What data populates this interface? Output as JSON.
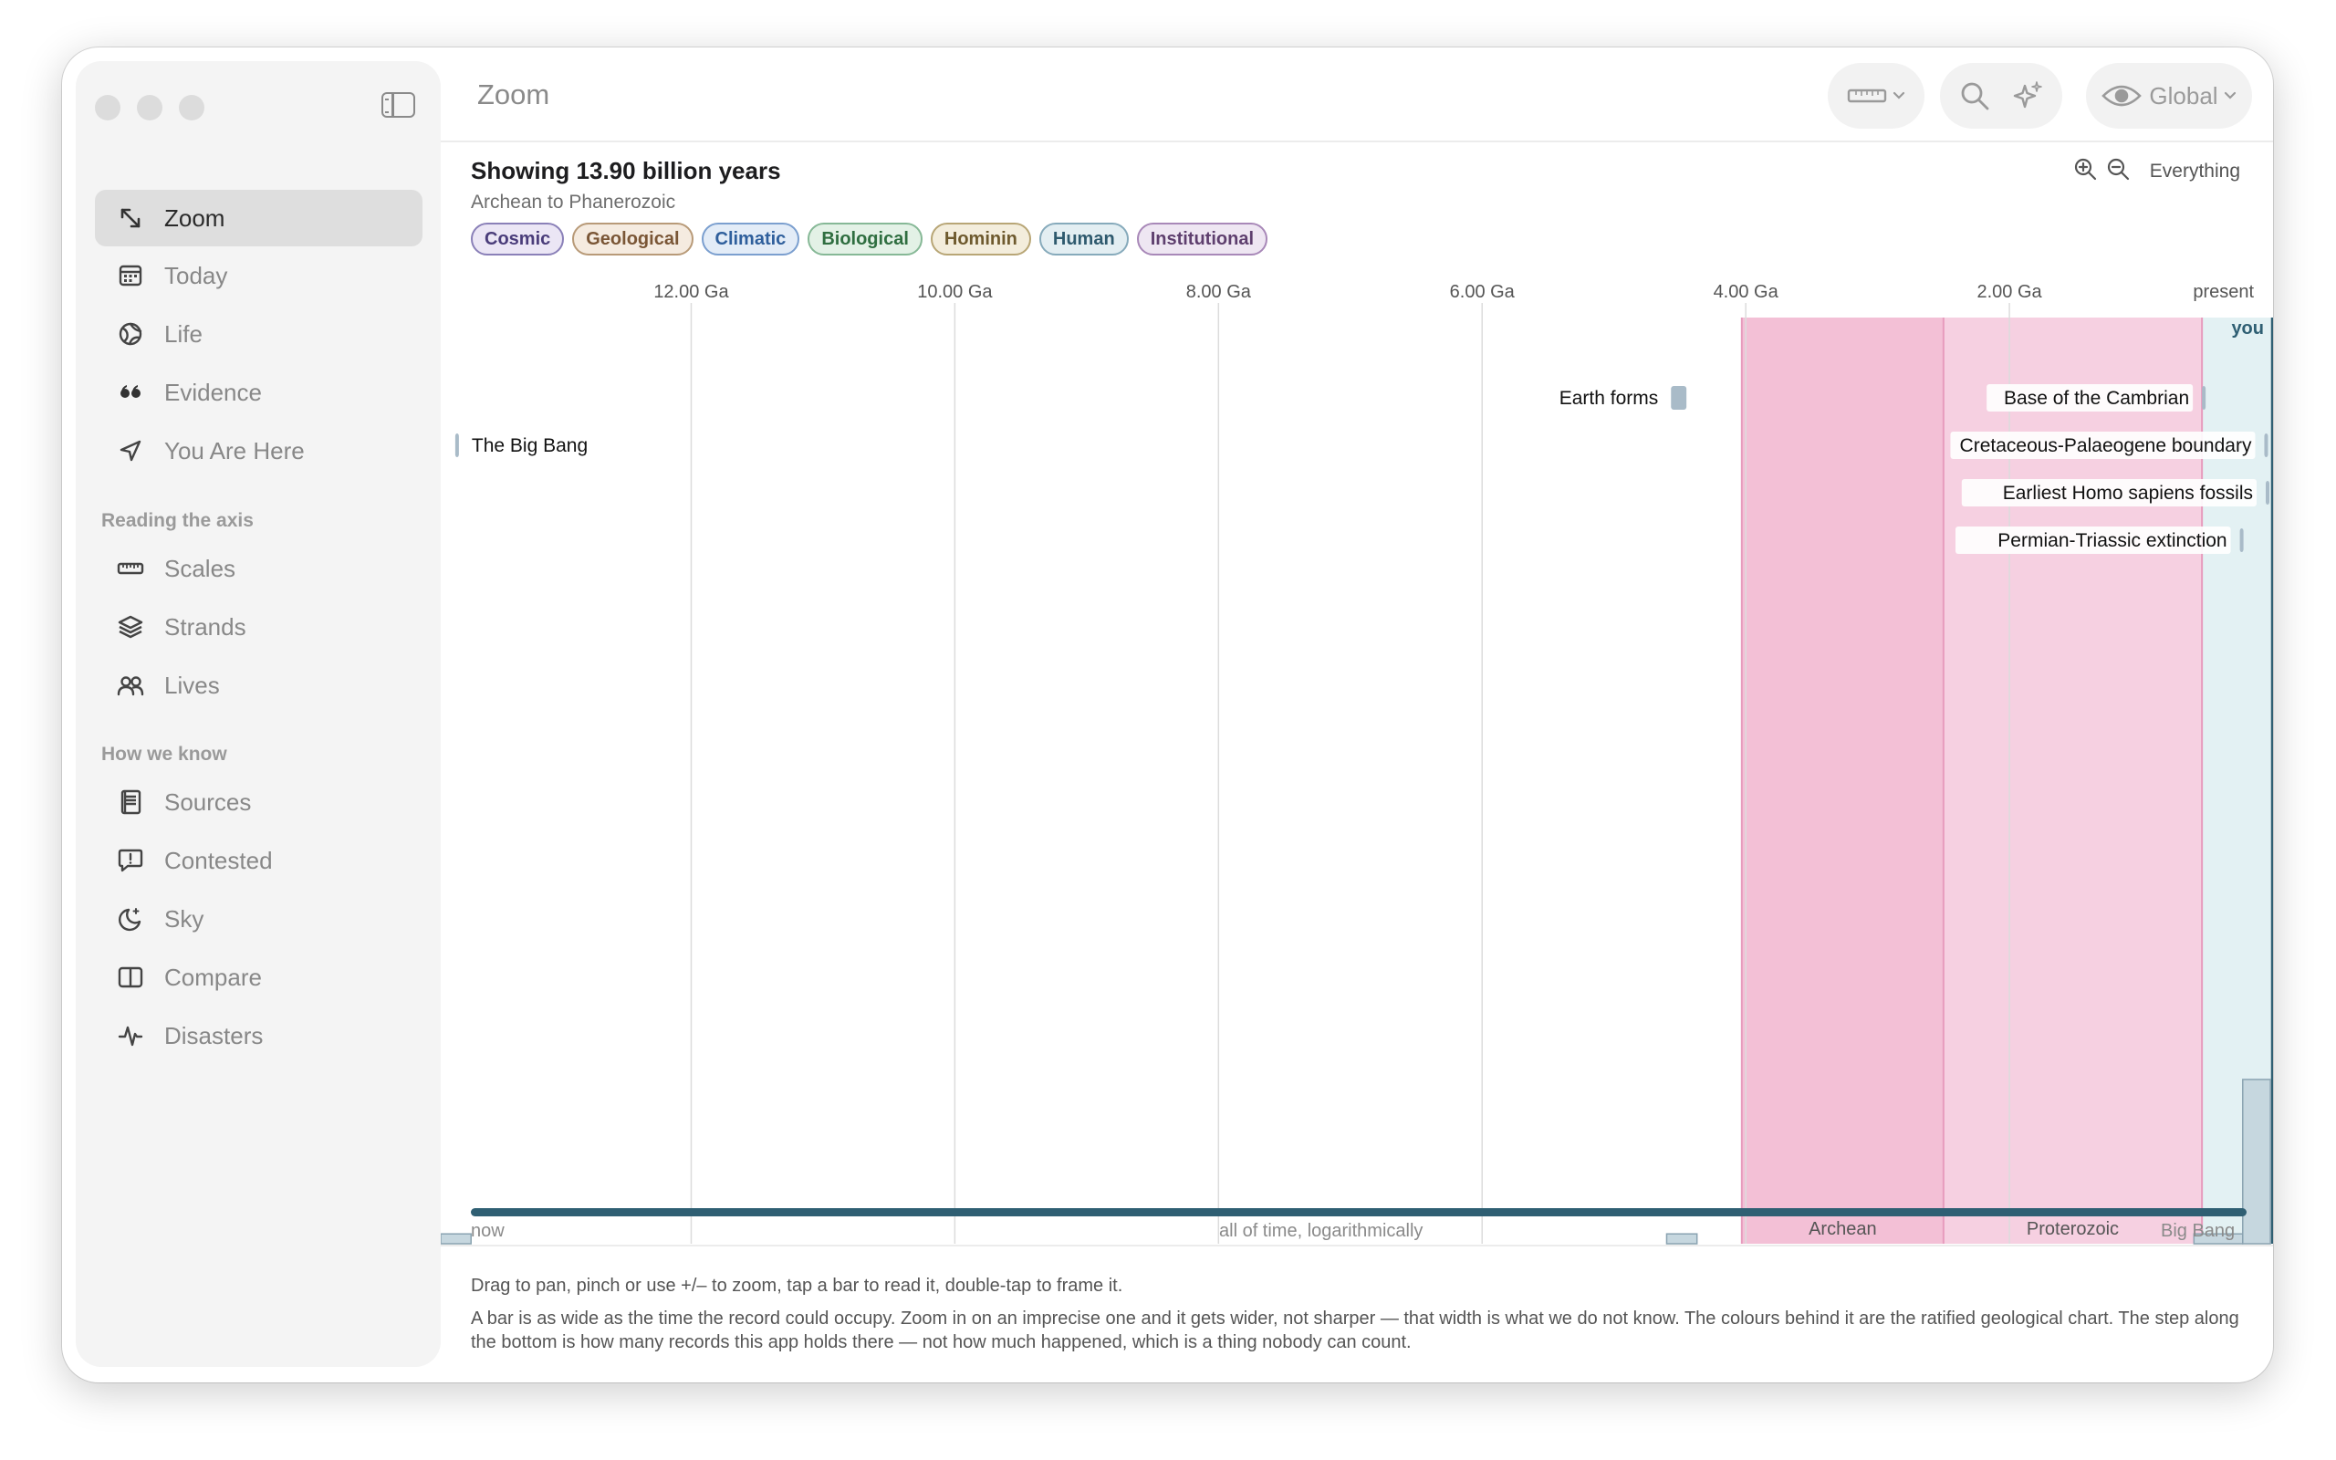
{
  "window": {
    "title": "Zoom"
  },
  "sidebar": {
    "items": [
      {
        "label": "Zoom",
        "icon": "arrows-diagonal-icon",
        "selected": true
      },
      {
        "label": "Today",
        "icon": "calendar-icon"
      },
      {
        "label": "Life",
        "icon": "globe-leaf-icon"
      },
      {
        "label": "Evidence",
        "icon": "quote-icon"
      },
      {
        "label": "You Are Here",
        "icon": "location-arrow-icon"
      }
    ],
    "sections": [
      {
        "heading": "Reading the axis",
        "items": [
          {
            "label": "Scales",
            "icon": "ruler-icon"
          },
          {
            "label": "Strands",
            "icon": "layers-icon"
          },
          {
            "label": "Lives",
            "icon": "people-icon"
          }
        ]
      },
      {
        "heading": "How we know",
        "items": [
          {
            "label": "Sources",
            "icon": "book-icon"
          },
          {
            "label": "Contested",
            "icon": "speech-exclamation-icon"
          },
          {
            "label": "Sky",
            "icon": "moon-stars-icon"
          },
          {
            "label": "Compare",
            "icon": "split-panel-icon"
          },
          {
            "label": "Disasters",
            "icon": "waveform-icon"
          }
        ]
      }
    ]
  },
  "toolbar": {
    "scale_menu_icon": "ruler-icon",
    "search_icon": "search-icon",
    "sparkle_icon": "sparkle-icon",
    "view_label": "Global",
    "view_icon": "eye-icon"
  },
  "header": {
    "showing": "Showing 13.90 billion years",
    "range": "Archean to Phanerozoic",
    "zoom_in_icon": "zoom-in-icon",
    "zoom_out_icon": "zoom-out-icon",
    "zoom_preset": "Everything"
  },
  "strands": [
    {
      "label": "Cosmic",
      "color": "#4a3d7a",
      "bg": "#ebe6f5",
      "border": "#8a80b8"
    },
    {
      "label": "Geological",
      "color": "#7a5636",
      "bg": "#f5ebe0",
      "border": "#b89a78"
    },
    {
      "label": "Climatic",
      "color": "#2f5f9c",
      "bg": "#e3ecf7",
      "border": "#7b9fcf"
    },
    {
      "label": "Biological",
      "color": "#2f6e40",
      "bg": "#e3f1e6",
      "border": "#86b896"
    },
    {
      "label": "Hominin",
      "color": "#6e5a2e",
      "bg": "#f3eddc",
      "border": "#b8a676"
    },
    {
      "label": "Human",
      "color": "#2f5a6e",
      "bg": "#e3eef2",
      "border": "#86aabb"
    },
    {
      "label": "Institutional",
      "color": "#5e3f6e",
      "bg": "#eee6f2",
      "border": "#a888b8"
    }
  ],
  "chart_data": {
    "type": "timeline",
    "x_unit": "Ga before present",
    "xlim": [
      13.9,
      0
    ],
    "ticks": [
      {
        "label": "12.00 Ga",
        "value": 12
      },
      {
        "label": "10.00 Ga",
        "value": 10
      },
      {
        "label": "8.00 Ga",
        "value": 8
      },
      {
        "label": "6.00 Ga",
        "value": 6
      },
      {
        "label": "4.00 Ga",
        "value": 4
      },
      {
        "label": "2.00 Ga",
        "value": 2
      },
      {
        "label": "present",
        "value": 0
      }
    ],
    "you_label": "you",
    "eons": [
      {
        "name": "Archean",
        "start": 4.03,
        "end": 2.5,
        "color": "#f3c0d6"
      },
      {
        "name": "Proterozoic",
        "start": 2.5,
        "end": 0.539,
        "color": "#f6d0e1"
      },
      {
        "name": "Phanerozoic",
        "start": 0.539,
        "end": 0,
        "color": "#e3f1f3"
      }
    ],
    "events": [
      {
        "label": "Earth forms",
        "start": 4.567,
        "end": 4.45,
        "row": 2,
        "side": "left"
      },
      {
        "label": "The Big Bang",
        "start": 13.79,
        "end": 13.77,
        "row": 3,
        "side": "right"
      },
      {
        "label": "Base of the Cambrian",
        "start": 0.539,
        "end": 0.538,
        "row": 2,
        "side": "left"
      },
      {
        "label": "Cretaceous-Palaeogene boundary",
        "start": 0.066,
        "end": 0.066,
        "row": 3,
        "side": "left"
      },
      {
        "label": "Earliest Homo sapiens fossils",
        "start": 0.0003,
        "end": 0.0003,
        "row": 4,
        "side": "left"
      },
      {
        "label": "Permian-Triassic extinction",
        "start": 0.252,
        "end": 0.251,
        "row": 5,
        "side": "left"
      }
    ],
    "record_density": [
      {
        "start": 13.9,
        "end": 13.67,
        "level": 0.06
      },
      {
        "start": 4.6,
        "end": 4.37,
        "level": 0.06
      },
      {
        "start": 0.6,
        "end": 0.23,
        "level": 0.06
      },
      {
        "start": 0.23,
        "end": 0.02,
        "level": 1.0
      }
    ],
    "overview": {
      "left": "now",
      "center": "all of time, logarithmically",
      "right": "Big Bang"
    }
  },
  "footer": {
    "hint": "Drag to pan, pinch or use +/– to zoom, tap a bar to read it, double-tap to frame it.",
    "explanation": "A bar is as wide as the time the record could occupy. Zoom in on an imprecise one and it gets wider, not sharper — that width is what we do not know. The colours behind it are the ratified geological chart. The step along the bottom is how many records this app holds there — not how much happened, which is a thing nobody can count."
  },
  "colors": {
    "accent": "#2f5f73",
    "sidebar_bg": "#f4f4f4",
    "event_bar": "#a9bbc8",
    "density_fill": "#c6d7df",
    "density_stroke": "#8aa3b1"
  }
}
